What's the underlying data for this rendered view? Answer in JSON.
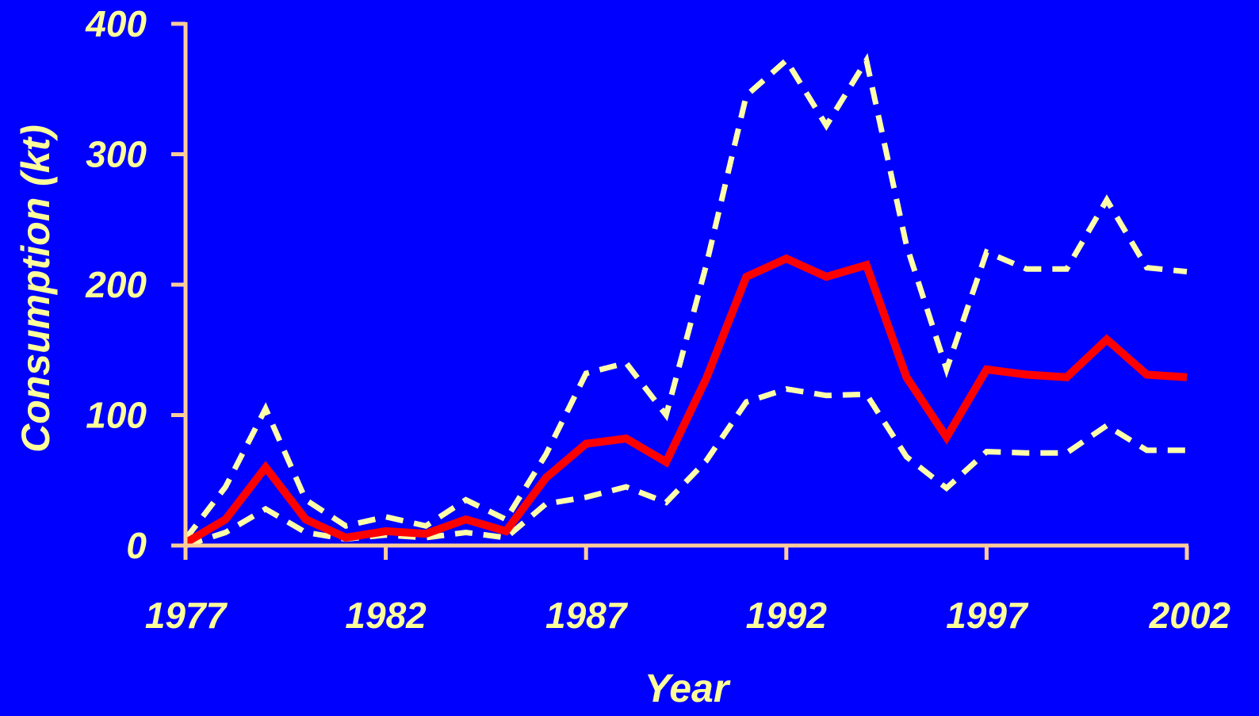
{
  "chart_data": {
    "type": "line",
    "xlabel": "Year",
    "ylabel": "Consumption (kt)",
    "xlim": [
      1977,
      2002
    ],
    "ylim": [
      0,
      400
    ],
    "x_ticks": [
      "1977",
      "1982",
      "1987",
      "1992",
      "1997",
      "2002"
    ],
    "y_ticks": [
      "0",
      "100",
      "200",
      "300",
      "400"
    ],
    "grid": false,
    "legend": "none",
    "x": [
      1977,
      1978,
      1979,
      1980,
      1981,
      1982,
      1983,
      1984,
      1985,
      1986,
      1987,
      1988,
      1989,
      1990,
      1991,
      1992,
      1993,
      1994,
      1995,
      1996,
      1997,
      1998,
      1999,
      2000,
      2001,
      2002
    ],
    "series": [
      {
        "style": "solid",
        "color": "#FF0000",
        "values": [
          2,
          20,
          60,
          20,
          6,
          11,
          9,
          20,
          11,
          52,
          78,
          82,
          64,
          128,
          206,
          220,
          206,
          215,
          129,
          83,
          135,
          131,
          129,
          158,
          131,
          129
        ]
      },
      {
        "style": "dashed",
        "color": "#FFFFAA",
        "values": [
          5,
          45,
          105,
          35,
          15,
          22,
          15,
          35,
          20,
          70,
          132,
          140,
          100,
          215,
          345,
          372,
          322,
          372,
          230,
          135,
          225,
          212,
          212,
          265,
          213,
          210
        ]
      },
      {
        "style": "dashed",
        "color": "#FFFFAA",
        "values": [
          0,
          10,
          28,
          10,
          5,
          8,
          6,
          10,
          6,
          32,
          37,
          45,
          33,
          65,
          110,
          120,
          115,
          116,
          68,
          44,
          72,
          71,
          71,
          92,
          73,
          73
        ]
      }
    ],
    "axis_color": "#FFCC99",
    "label_color": "#FFFF99",
    "background": "#0000FF"
  }
}
